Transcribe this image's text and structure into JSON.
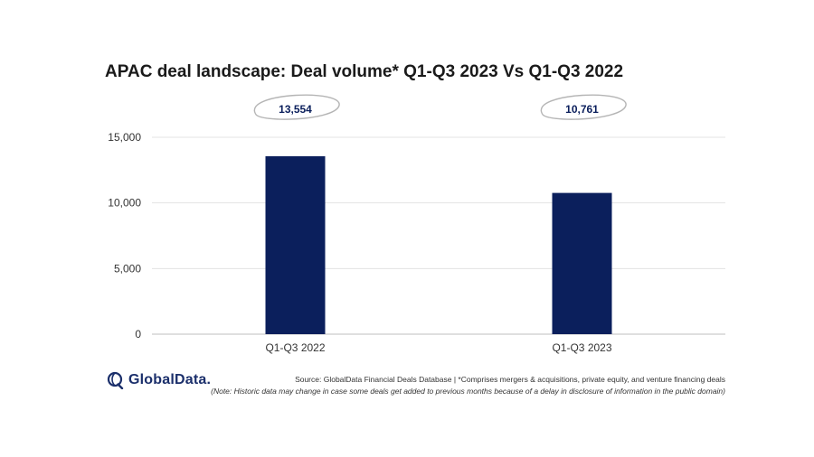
{
  "chart_data": {
    "type": "bar",
    "title": "APAC deal landscape: Deal volume* Q1-Q3 2023 Vs Q1-Q3 2022",
    "categories": [
      "Q1-Q3 2022",
      "Q1-Q3 2023"
    ],
    "values": [
      13554,
      10761
    ],
    "data_labels": [
      "13,554",
      "10,761"
    ],
    "xlabel": "",
    "ylabel": "",
    "ylim": [
      0,
      15000
    ],
    "yticks": [
      0,
      5000,
      10000,
      15000
    ],
    "ytick_labels": [
      "0",
      "5,000",
      "10,000",
      "15,000"
    ],
    "grid": true,
    "bar_color": "#0b1f5c"
  },
  "brand": {
    "name": "GlobalData.",
    "color": "#1b2f6b"
  },
  "footer": {
    "source": "Source: GlobalData Financial Deals Database | *Comprises mergers & acquisitions, private equity, and venture financing deals",
    "note": "(Note: Historic data may change in case some deals get added to previous months because of a delay in disclosure of information in the public domain)"
  }
}
